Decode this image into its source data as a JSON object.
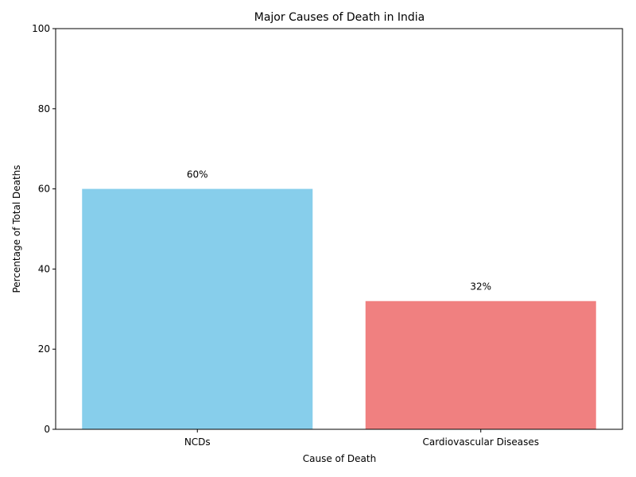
{
  "chart_data": {
    "type": "bar",
    "title": "Major Causes of Death in India",
    "xlabel": "Cause of Death",
    "ylabel": "Percentage of Total Deaths",
    "categories": [
      "NCDs",
      "Cardiovascular Diseases"
    ],
    "values": [
      60,
      32
    ],
    "data_labels": [
      "60%",
      "32%"
    ],
    "colors": [
      "#87ceeb",
      "#f08080"
    ],
    "ylim": [
      0,
      100
    ],
    "yticks": [
      0,
      20,
      40,
      60,
      80,
      100
    ],
    "grid": false
  }
}
